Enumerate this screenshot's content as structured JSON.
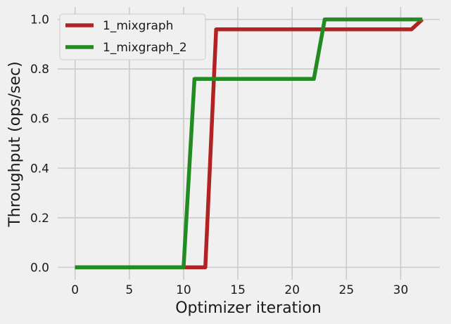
{
  "chart_data": {
    "type": "line",
    "title": "",
    "xlabel": "Optimizer iteration",
    "ylabel": "Throughput (ops/sec)",
    "xlim": [
      -1.6,
      33.6
    ],
    "ylim": [
      -0.05,
      1.05
    ],
    "xticks": [
      0,
      5,
      10,
      15,
      20,
      25,
      30
    ],
    "yticks": [
      0.0,
      0.2,
      0.4,
      0.6,
      0.8,
      1.0
    ],
    "xtick_labels": [
      "0",
      "5",
      "10",
      "15",
      "20",
      "25",
      "30"
    ],
    "ytick_labels": [
      "0.0",
      "0.2",
      "0.4",
      "0.6",
      "0.8",
      "1.0"
    ],
    "grid": true,
    "legend_position": "upper-left",
    "series": [
      {
        "name": "1_mixgraph",
        "color": "#b22222",
        "x": [
          0,
          1,
          2,
          3,
          4,
          5,
          6,
          7,
          8,
          9,
          10,
          11,
          12,
          13,
          14,
          15,
          16,
          17,
          18,
          19,
          20,
          21,
          22,
          23,
          24,
          25,
          26,
          27,
          28,
          29,
          30,
          31,
          32
        ],
        "y": [
          0,
          0,
          0,
          0,
          0,
          0,
          0,
          0,
          0,
          0,
          0,
          0,
          0,
          0.96,
          0.96,
          0.96,
          0.96,
          0.96,
          0.96,
          0.96,
          0.96,
          0.96,
          0.96,
          0.96,
          0.96,
          0.96,
          0.96,
          0.96,
          0.96,
          0.96,
          0.96,
          0.96,
          1.0
        ]
      },
      {
        "name": "1_mixgraph_2",
        "color": "#228b22",
        "x": [
          0,
          1,
          2,
          3,
          4,
          5,
          6,
          7,
          8,
          9,
          10,
          11,
          12,
          13,
          14,
          15,
          16,
          17,
          18,
          19,
          20,
          21,
          22,
          23,
          24,
          25,
          26,
          27,
          28,
          29,
          30,
          31,
          32
        ],
        "y": [
          0,
          0,
          0,
          0,
          0,
          0,
          0,
          0,
          0,
          0,
          0,
          0.76,
          0.76,
          0.76,
          0.76,
          0.76,
          0.76,
          0.76,
          0.76,
          0.76,
          0.76,
          0.76,
          0.76,
          1.0,
          1.0,
          1.0,
          1.0,
          1.0,
          1.0,
          1.0,
          1.0,
          1.0,
          1.0
        ]
      }
    ]
  }
}
